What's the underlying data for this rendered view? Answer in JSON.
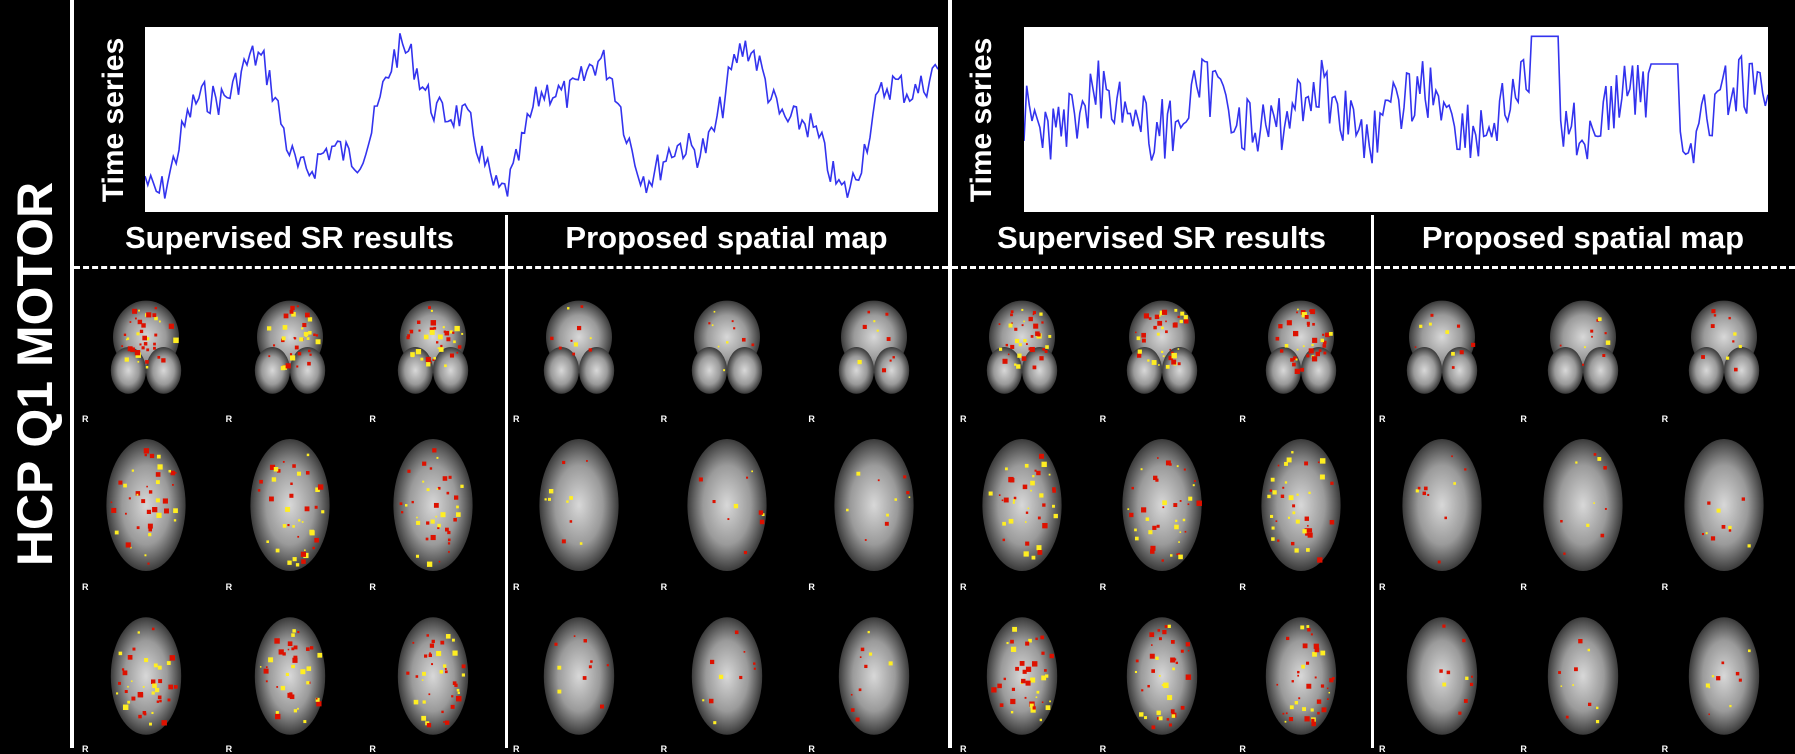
{
  "sidebar": {
    "title": "HCP Q1 MOTOR"
  },
  "panels": [
    {
      "time_series_label": "Time series",
      "headings": [
        "Supervised SR results",
        "Proposed spatial map"
      ]
    },
    {
      "time_series_label": "Time series",
      "headings": [
        "Supervised SR results",
        "Proposed spatial map"
      ]
    }
  ],
  "orientation_label": "R",
  "colors": {
    "background": "#000000",
    "trace": "#3333ee",
    "activation_low": "#dd1100",
    "activation_high": "#ffee22"
  }
}
